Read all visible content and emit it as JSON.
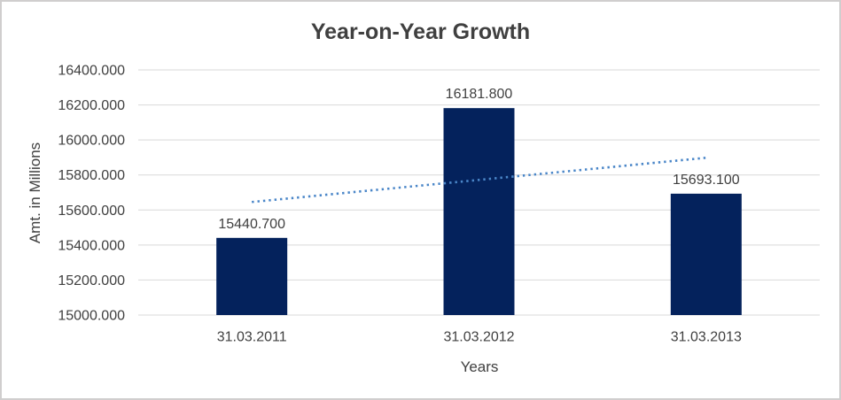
{
  "chart_data": {
    "type": "bar",
    "title": "Year-on-Year Growth",
    "xlabel": "Years",
    "ylabel": "Amt. in Millions",
    "categories": [
      "31.03.2011",
      "31.03.2012",
      "31.03.2013"
    ],
    "values": [
      15440.7,
      16181.8,
      15693.1
    ],
    "data_labels": [
      "15440.700",
      "16181.800",
      "15693.100"
    ],
    "ylim": [
      15000,
      16400
    ],
    "ytick_step": 200,
    "ytick_labels": [
      "15000.000",
      "15200.000",
      "15400.000",
      "15600.000",
      "15800.000",
      "16000.000",
      "16200.000",
      "16400.000"
    ],
    "grid": true,
    "legend": "none",
    "trendline": {
      "style": "dotted",
      "endpoint_values": [
        15645.7,
        15898.1
      ],
      "color": "#4a86c8"
    },
    "colors": {
      "bar": "#04225c",
      "gridline": "#d9d9d9",
      "text": "#404040",
      "border": "#d0cece",
      "background": "#ffffff"
    }
  }
}
